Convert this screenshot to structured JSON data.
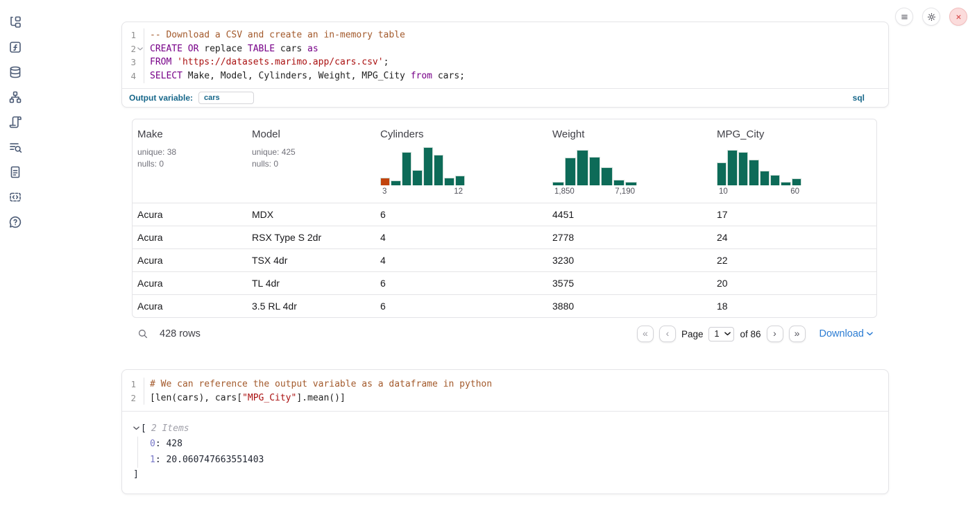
{
  "sidebar": {
    "items": [
      {
        "name": "file-explorer-icon"
      },
      {
        "name": "variables-icon"
      },
      {
        "name": "datasources-icon"
      },
      {
        "name": "dependency-graph-icon"
      },
      {
        "name": "scratchpad-icon"
      },
      {
        "name": "logs-icon"
      },
      {
        "name": "documentation-icon"
      },
      {
        "name": "snippets-icon"
      },
      {
        "name": "help-icon"
      }
    ]
  },
  "header_buttons": [
    {
      "name": "notebook-menu-button"
    },
    {
      "name": "settings-button"
    },
    {
      "name": "shutdown-button"
    }
  ],
  "colors": {
    "accent_teal": "#17678a",
    "histogram_green": "#0d6b58",
    "histogram_orange": "#c2440e",
    "link_blue": "#2b7cd3",
    "keyword_purple": "#770088",
    "string_red": "#aa1111",
    "comment_brown": "#a35a2c"
  },
  "sql_cell": {
    "lines": [
      {
        "num": "1",
        "fold": false,
        "tokens": [
          {
            "type": "cmt",
            "text": "-- Download a CSV and create an in-memory table"
          }
        ]
      },
      {
        "num": "2",
        "fold": true,
        "tokens": [
          {
            "type": "kw",
            "text": "CREATE"
          },
          {
            "type": "plain",
            "text": " "
          },
          {
            "type": "kw",
            "text": "OR"
          },
          {
            "type": "plain",
            "text": " replace "
          },
          {
            "type": "kw",
            "text": "TABLE"
          },
          {
            "type": "plain",
            "text": " cars "
          },
          {
            "type": "kw",
            "text": "as"
          }
        ]
      },
      {
        "num": "3",
        "fold": false,
        "tokens": [
          {
            "type": "kw",
            "text": "FROM"
          },
          {
            "type": "plain",
            "text": " "
          },
          {
            "type": "str",
            "text": "'https://datasets.marimo.app/cars.csv'"
          },
          {
            "type": "plain",
            "text": ";"
          }
        ]
      },
      {
        "num": "4",
        "fold": false,
        "tokens": [
          {
            "type": "kw",
            "text": "SELECT"
          },
          {
            "type": "plain",
            "text": " Make, Model, Cylinders, Weight, MPG_City "
          },
          {
            "type": "kw",
            "text": "from"
          },
          {
            "type": "plain",
            "text": " cars;"
          }
        ]
      }
    ],
    "output_variable_label": "Output variable:",
    "output_variable_value": "cars",
    "language_badge": "sql"
  },
  "data_table": {
    "columns": [
      {
        "name": "Make",
        "kind": "stats",
        "unique": "unique: 38",
        "nulls": "nulls: 0"
      },
      {
        "name": "Model",
        "kind": "stats",
        "unique": "unique: 425",
        "nulls": "nulls: 0"
      },
      {
        "name": "Cylinders",
        "kind": "histogram",
        "min_label": "3",
        "max_label": "12",
        "bars": [
          20,
          12,
          87,
          40,
          100,
          80,
          20,
          26
        ],
        "first_bar_color": "#c2440e"
      },
      {
        "name": "Weight",
        "kind": "histogram",
        "min_label": "1,850",
        "max_label": "7,190",
        "bars": [
          10,
          72,
          93,
          75,
          48,
          15,
          10
        ]
      },
      {
        "name": "MPG_City",
        "kind": "histogram",
        "min_label": "10",
        "max_label": "60",
        "bars": [
          60,
          93,
          87,
          67,
          38,
          27,
          10,
          18
        ]
      }
    ],
    "rows": [
      [
        "Acura",
        "MDX",
        "6",
        "4451",
        "17"
      ],
      [
        "Acura",
        "RSX Type S 2dr",
        "4",
        "2778",
        "24"
      ],
      [
        "Acura",
        "TSX 4dr",
        "4",
        "3230",
        "22"
      ],
      [
        "Acura",
        "TL 4dr",
        "6",
        "3575",
        "20"
      ],
      [
        "Acura",
        "3.5 RL 4dr",
        "6",
        "3880",
        "18"
      ]
    ],
    "footer": {
      "row_count": "428 rows",
      "page_label": "Page",
      "page_value": "1",
      "total_pages_label": "of 86",
      "download_label": "Download"
    }
  },
  "python_cell": {
    "lines": [
      {
        "num": "1",
        "fold": false,
        "tokens": [
          {
            "type": "cmt",
            "text": "# We can reference the output variable as a dataframe in python"
          }
        ]
      },
      {
        "num": "2",
        "fold": false,
        "tokens": [
          {
            "type": "plain",
            "text": "[len(cars), cars["
          },
          {
            "type": "str",
            "text": "\"MPG_City\""
          },
          {
            "type": "plain",
            "text": "].mean()]"
          }
        ]
      }
    ]
  },
  "python_output": {
    "bracket_open": "[",
    "items_label": "2 Items",
    "entries": [
      {
        "key": "0",
        "value": "428"
      },
      {
        "key": "1",
        "value": "20.060747663551403"
      }
    ],
    "bracket_close": "]"
  }
}
